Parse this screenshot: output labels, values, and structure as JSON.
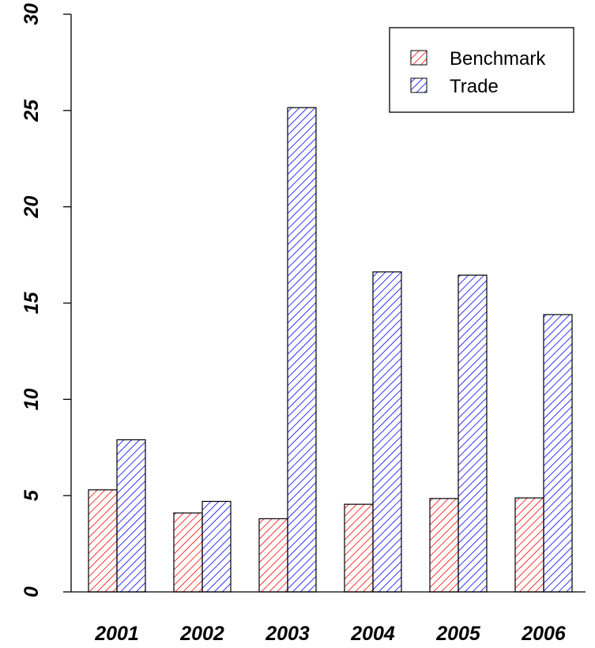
{
  "chart_data": {
    "type": "bar",
    "categories": [
      "2001",
      "2002",
      "2003",
      "2004",
      "2005",
      "2006"
    ],
    "series": [
      {
        "name": "Benchmark",
        "values": [
          5.3,
          4.1,
          3.8,
          4.55,
          4.85,
          4.88
        ],
        "color": "#ff0000"
      },
      {
        "name": "Trade",
        "values": [
          7.9,
          4.7,
          25.15,
          16.62,
          16.45,
          14.4
        ],
        "color": "#0000ff"
      }
    ],
    "yticks": [
      "0",
      "5",
      "10",
      "15",
      "20",
      "25",
      "30"
    ],
    "ylim": [
      0,
      30
    ],
    "legend_position": "top-right",
    "fill_pattern": "diagonal-hatch",
    "title": "",
    "xlabel": "",
    "ylabel": ""
  }
}
